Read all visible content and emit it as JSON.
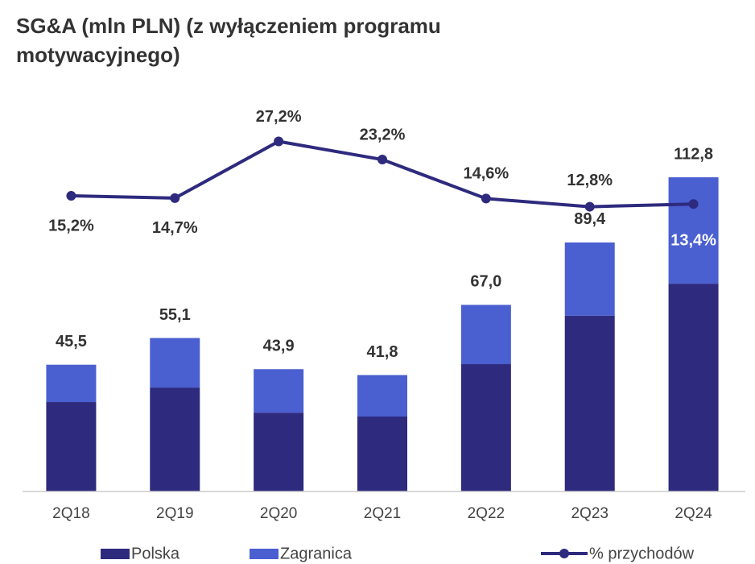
{
  "chart_data": {
    "type": "stacked_bar_line",
    "title": "SG&A (mln PLN) (z wyłączeniem programu motywacyjnego)",
    "categories": [
      "2Q18",
      "2Q19",
      "2Q20",
      "2Q21",
      "2Q22",
      "2Q23",
      "2Q24"
    ],
    "series": [
      {
        "name": "Polska",
        "color": "#2e2a7e",
        "values": [
          32.1,
          37.3,
          28.3,
          26.9,
          45.7,
          63.1,
          74.6
        ]
      },
      {
        "name": "Zagranica",
        "color": "#4a5fd0",
        "values": [
          13.4,
          17.8,
          15.6,
          14.9,
          21.3,
          26.3,
          38.2
        ]
      },
      {
        "name": "% przychodów",
        "color": "#2e2a7e",
        "axis": "y2",
        "values": [
          15.2,
          14.7,
          27.2,
          23.2,
          14.6,
          12.8,
          13.4
        ],
        "value_labels": [
          "15,2%",
          "14,7%",
          "27,2%",
          "23,2%",
          "14,6%",
          "12,8%",
          "13,4%"
        ]
      }
    ],
    "totals": {
      "values": [
        45.5,
        55.1,
        43.9,
        41.8,
        67.0,
        89.4,
        112.8
      ],
      "value_labels": [
        "45,5",
        "55,1",
        "43,9",
        "41,8",
        "67,0",
        "89,4",
        "112,8"
      ]
    },
    "ylim": [
      0,
      140
    ],
    "y2lim": [
      -50,
      36
    ]
  }
}
